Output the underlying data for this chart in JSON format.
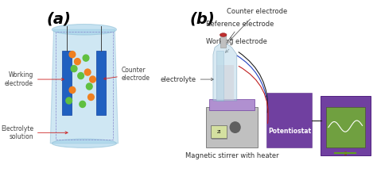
{
  "bg_color": "#f0f0f0",
  "panel_a_label": "(a)",
  "panel_b_label": "(b)",
  "label_a_fontsize": 14,
  "label_b_fontsize": 14,
  "fig_width": 4.74,
  "fig_height": 2.27,
  "labels_a": {
    "working_electrode": "Working\nelectrode",
    "counter_electrode": "Counter\nelectrode",
    "electrolyte_solution": "Electrolyte\nsolution"
  },
  "labels_b": {
    "counter_electrode": "Counter electrode",
    "reference_electrode": "Reference electrode",
    "working_electrode": "Working electrode",
    "electrolyte": "electrolyte",
    "potentiostat": "Potentiostat",
    "magnetic_stirrer": "Magnetic stirrer with heater"
  },
  "electrode_color": "#2060c0",
  "beaker_color": "#a0d0e8",
  "beaker_edge": "#90c0d8",
  "particle_colors_orange": "#f08020",
  "particle_colors_green": "#60c040",
  "wire_color": "#404040",
  "annotation_color": "#cc2020",
  "annotation_fontsize": 5.5,
  "label_fontsize": 6,
  "potentiostat_color": "#7040a0",
  "stirrer_color": "#a0a0a0",
  "bottle_color_top": "#c08080",
  "bottle_color_body": "#b0d0e8",
  "screen_color": "#70a040",
  "screen_border": "#7040a0"
}
